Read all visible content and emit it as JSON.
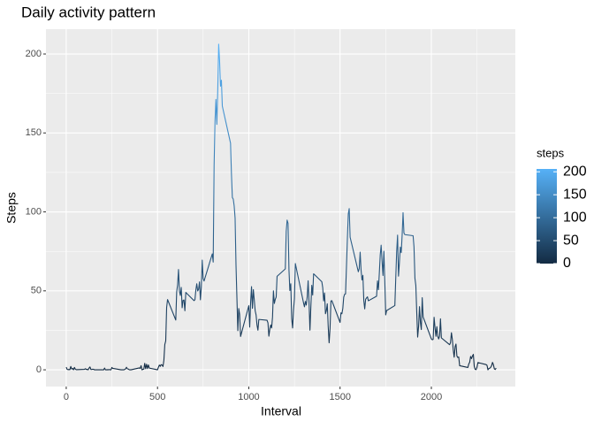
{
  "chart_data": {
    "type": "line",
    "title": "Daily activity pattern",
    "x_label": "Interval",
    "y_label": "Steps",
    "x": [
      0,
      5,
      10,
      15,
      20,
      25,
      30,
      35,
      40,
      45,
      50,
      55,
      100,
      105,
      110,
      115,
      120,
      125,
      130,
      135,
      140,
      145,
      150,
      155,
      200,
      205,
      210,
      215,
      220,
      225,
      230,
      235,
      240,
      245,
      250,
      255,
      300,
      305,
      310,
      315,
      320,
      325,
      330,
      335,
      340,
      345,
      350,
      355,
      400,
      405,
      410,
      415,
      420,
      425,
      430,
      435,
      440,
      445,
      450,
      455,
      500,
      505,
      510,
      515,
      520,
      525,
      530,
      535,
      540,
      545,
      550,
      555,
      600,
      605,
      610,
      615,
      620,
      625,
      630,
      635,
      640,
      645,
      650,
      655,
      700,
      705,
      710,
      715,
      720,
      725,
      730,
      735,
      740,
      745,
      750,
      755,
      800,
      805,
      810,
      815,
      820,
      825,
      830,
      835,
      840,
      845,
      850,
      855,
      900,
      905,
      910,
      915,
      920,
      925,
      930,
      935,
      940,
      945,
      950,
      955,
      1000,
      1005,
      1010,
      1015,
      1020,
      1025,
      1030,
      1035,
      1040,
      1045,
      1050,
      1055,
      1100,
      1105,
      1110,
      1115,
      1120,
      1125,
      1130,
      1135,
      1140,
      1145,
      1150,
      1155,
      1200,
      1205,
      1210,
      1215,
      1220,
      1225,
      1230,
      1235,
      1240,
      1245,
      1250,
      1255,
      1300,
      1305,
      1310,
      1315,
      1320,
      1325,
      1330,
      1335,
      1340,
      1345,
      1350,
      1355,
      1400,
      1405,
      1410,
      1415,
      1420,
      1425,
      1430,
      1435,
      1440,
      1445,
      1450,
      1455,
      1500,
      1505,
      1510,
      1515,
      1520,
      1525,
      1530,
      1535,
      1540,
      1545,
      1550,
      1555,
      1600,
      1605,
      1610,
      1615,
      1620,
      1625,
      1630,
      1635,
      1640,
      1645,
      1650,
      1655,
      1700,
      1705,
      1710,
      1715,
      1720,
      1725,
      1730,
      1735,
      1740,
      1745,
      1750,
      1755,
      1800,
      1805,
      1810,
      1815,
      1820,
      1825,
      1830,
      1835,
      1840,
      1845,
      1850,
      1855,
      1900,
      1905,
      1910,
      1915,
      1920,
      1925,
      1930,
      1935,
      1940,
      1945,
      1950,
      1955,
      2000,
      2005,
      2010,
      2015,
      2020,
      2025,
      2030,
      2035,
      2040,
      2045,
      2050,
      2055,
      2100,
      2105,
      2110,
      2115,
      2120,
      2125,
      2130,
      2135,
      2140,
      2145,
      2150,
      2155,
      2200,
      2205,
      2210,
      2215,
      2220,
      2225,
      2230,
      2235,
      2240,
      2245,
      2250,
      2255,
      2300,
      2305,
      2310,
      2315,
      2320,
      2325,
      2330,
      2335,
      2340,
      2345,
      2350,
      2355
    ],
    "values": [
      1.7,
      0.3,
      0.1,
      0.2,
      0.1,
      2.1,
      0.5,
      0.9,
      0,
      1.5,
      0.3,
      0.1,
      0.3,
      0.7,
      0.2,
      0.3,
      0,
      1.1,
      1.8,
      0.2,
      0.2,
      0.4,
      0.3,
      0,
      0,
      0,
      1.1,
      0,
      0,
      0.1,
      0,
      0.2,
      0,
      0,
      1.5,
      0.9,
      0,
      0,
      0,
      0,
      0.2,
      0.6,
      1.6,
      0.6,
      0.5,
      0.1,
      0,
      0,
      1.2,
      0.9,
      2.6,
      0,
      0.3,
      0.4,
      4.1,
      0.7,
      3.5,
      0.8,
      3.1,
      1.1,
      0,
      1.6,
      3,
      2.2,
      3.3,
      3,
      2.1,
      6.1,
      16,
      18.3,
      39.5,
      44.5,
      31.5,
      49.3,
      53.8,
      63.5,
      50,
      47.1,
      52.2,
      39.3,
      44,
      44.2,
      37.4,
      49,
      43.8,
      44.4,
      50.5,
      54.5,
      49.9,
      51,
      55.7,
      44.3,
      52.3,
      69.5,
      57.8,
      56.2,
      73.4,
      68.2,
      129.4,
      157.5,
      171.2,
      155.4,
      177.3,
      206.2,
      195.9,
      179.6,
      183.4,
      167,
      143.5,
      124,
      109.1,
      108.1,
      103.7,
      96,
      66.2,
      45.2,
      24.8,
      38.8,
      35,
      21.1,
      40.6,
      27,
      42.4,
      52.7,
      38.9,
      50.8,
      44.3,
      37.4,
      34.7,
      28.3,
      25.1,
      31.9,
      31.4,
      29.7,
      21.3,
      25.5,
      28.4,
      26.5,
      33.4,
      50,
      42,
      44.6,
      46,
      59.2,
      63.9,
      87.7,
      94.8,
      92.8,
      63.4,
      50.2,
      54.5,
      32.4,
      26.5,
      37.7,
      45.1,
      67.3,
      42.3,
      39.9,
      43.3,
      41,
      46.2,
      56.4,
      42.8,
      25.1,
      40,
      53.5,
      47.3,
      60.8,
      55.8,
      52,
      43.6,
      48.7,
      35.5,
      37.5,
      41.8,
      27.5,
      17.1,
      26.1,
      43.6,
      43.8,
      30,
      36.1,
      35.5,
      38.8,
      46,
      47.8,
      48.1,
      65.3,
      82.9,
      98.7,
      102.1,
      84,
      62.1,
      64.1,
      74.5,
      63.2,
      56.9,
      59.8,
      43.9,
      38.6,
      44.7,
      45.5,
      46.2,
      43.7,
      46.6,
      56.3,
      50.7,
      61.2,
      72.7,
      78.9,
      68.9,
      59.7,
      75.1,
      56.5,
      34.8,
      37.5,
      40.7,
      58,
      74.7,
      85.3,
      59.3,
      67.8,
      77.7,
      74.2,
      85.3,
      99.5,
      86.6,
      85.6,
      84.9,
      77.8,
      58,
      53.4,
      36.3,
      20.7,
      27.4,
      40,
      30.2,
      25.5,
      45.7,
      33.5,
      19.6,
      19,
      19.3,
      33.3,
      26.8,
      21.2,
      27.3,
      21.3,
      19.5,
      21.3,
      32.3,
      20.2,
      15.9,
      17.2,
      23.5,
      19.2,
      12.5,
      8,
      14.7,
      16.3,
      8.7,
      7.8,
      8.1,
      2.6,
      1.5,
      3.7,
      4.8,
      8.5,
      7.1,
      8.7,
      9.8,
      2.2,
      0.3,
      0.1,
      1.6,
      4.6,
      3.3,
      2.8,
      0,
      0.8,
      1,
      1.6,
      2.6,
      4.7,
      3.3,
      0.6,
      0.2,
      1.1
    ],
    "xlim": [
      -111,
      2460
    ],
    "xticks": [
      0,
      500,
      1000,
      1500,
      2000
    ],
    "ylim": [
      -10.6,
      215.7
    ],
    "yticks": [
      0,
      50,
      100,
      150,
      200
    ],
    "grid": true,
    "color_low": "#132B43",
    "color_high": "#56B1F7",
    "legend_title": "steps",
    "legend_ticks": [
      0,
      50,
      100,
      150,
      200
    ]
  }
}
